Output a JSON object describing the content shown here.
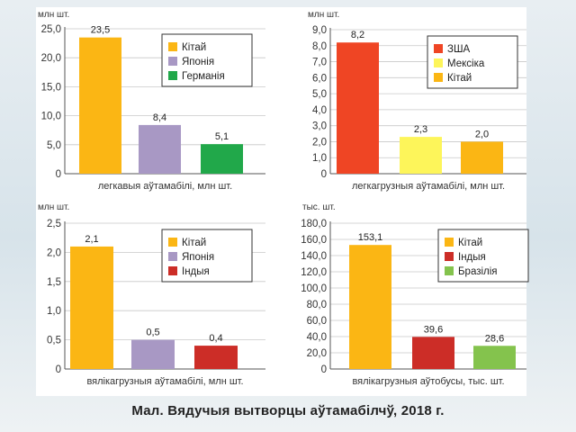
{
  "caption": "Мал. Вядучыя вытворцы аўтамабілчў, 2018 г.",
  "colors": {
    "orange": "#fbb614",
    "purple": "#a898c4",
    "green_dark": "#21a84a",
    "red": "#ef4524",
    "yellow": "#fdf55a",
    "red_dark": "#cc2d27",
    "green_light": "#84c34d"
  },
  "chart_data": [
    {
      "type": "bar",
      "unit_label": "млн шт.",
      "xlabel": "легкавыя аўтамабілі, млн шт.",
      "ylim": [
        0,
        25
      ],
      "yticks": [
        "0",
        "5,0",
        "10,0",
        "15,0",
        "20,0",
        "25,0"
      ],
      "tick_values": [
        0,
        5,
        10,
        15,
        20,
        25
      ],
      "categories": [
        "Кітай",
        "Японія",
        "Германія"
      ],
      "values": [
        23.5,
        8.4,
        5.1
      ],
      "value_labels": [
        "23,5",
        "8,4",
        "5,1"
      ],
      "colors": [
        "#fbb614",
        "#a898c4",
        "#21a84a"
      ],
      "legend": "top-right"
    },
    {
      "type": "bar",
      "unit_label": "млн шт.",
      "xlabel": "легкагрузныя аўтамабілі, млн шт.",
      "ylim": [
        0,
        9
      ],
      "yticks": [
        "0",
        "1,0",
        "2,0",
        "3,0",
        "4,0",
        "5,0",
        "6,0",
        "7,0",
        "8,0",
        "9,0"
      ],
      "tick_values": [
        0,
        1,
        2,
        3,
        4,
        5,
        6,
        7,
        8,
        9
      ],
      "categories": [
        "ЗША",
        "Мексіка",
        "Кітай"
      ],
      "values": [
        8.2,
        2.3,
        2.0
      ],
      "value_labels": [
        "8,2",
        "2,3",
        "2,0"
      ],
      "colors": [
        "#ef4524",
        "#fdf55a",
        "#fbb614"
      ],
      "legend": "top-right"
    },
    {
      "type": "bar",
      "unit_label": "млн шт.",
      "xlabel": "вялікагрузныя аўтамабілі, млн шт.",
      "ylim": [
        0,
        2.5
      ],
      "yticks": [
        "0",
        "0,5",
        "1,0",
        "1,5",
        "2,0",
        "2,5"
      ],
      "tick_values": [
        0,
        0.5,
        1.0,
        1.5,
        2.0,
        2.5
      ],
      "categories": [
        "Кітай",
        "Японія",
        "Індыя"
      ],
      "values": [
        2.1,
        0.5,
        0.4
      ],
      "value_labels": [
        "2,1",
        "0,5",
        "0,4"
      ],
      "colors": [
        "#fbb614",
        "#a898c4",
        "#cc2d27"
      ],
      "legend": "top-right"
    },
    {
      "type": "bar",
      "unit_label": "тыс. шт.",
      "xlabel": "вялікагрузныя аўтобусы, тыс. шт.",
      "ylim": [
        0,
        180
      ],
      "yticks": [
        "0",
        "20,0",
        "40,0",
        "60,0",
        "80,0",
        "100,0",
        "120,0",
        "140,0",
        "160,0",
        "180,0"
      ],
      "tick_values": [
        0,
        20,
        40,
        60,
        80,
        100,
        120,
        140,
        160,
        180
      ],
      "categories": [
        "Кітай",
        "Індыя",
        "Бразілія"
      ],
      "values": [
        153.1,
        39.6,
        28.6
      ],
      "value_labels": [
        "153,1",
        "39,6",
        "28,6"
      ],
      "colors": [
        "#fbb614",
        "#cc2d27",
        "#84c34d"
      ],
      "legend": "top-right"
    }
  ]
}
